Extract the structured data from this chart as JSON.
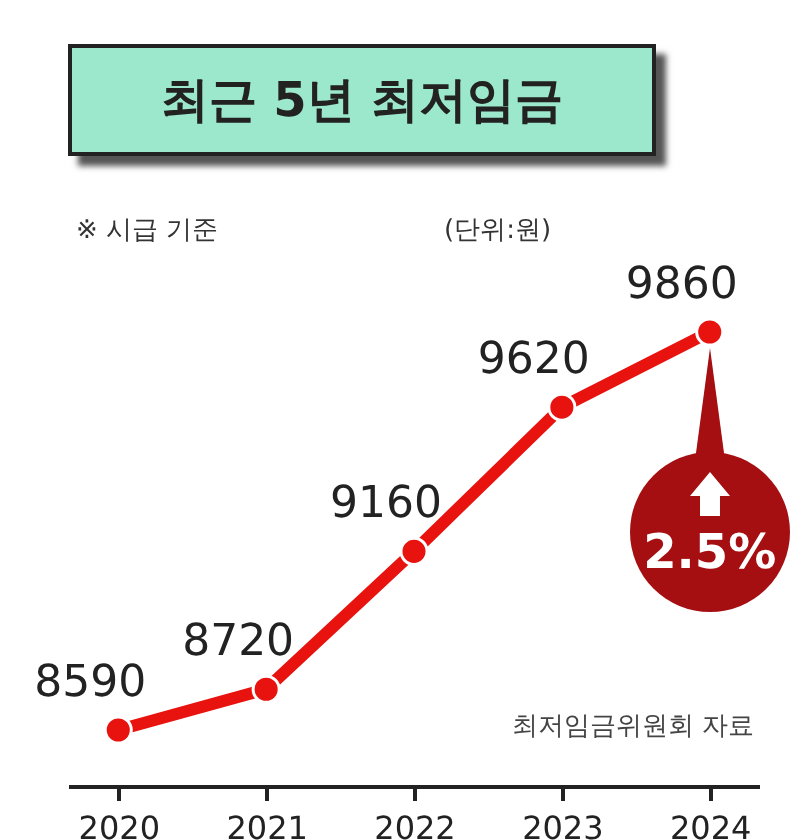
{
  "chart_data": {
    "type": "line",
    "title": "최근 5년 최저임금",
    "subtitle": "※ 시급 기준",
    "annotations": [
      "(단위:원)",
      "최저임금위원회 자료",
      {
        "text": "2.5%",
        "x": "2024",
        "y": 9860
      }
    ],
    "categories": [
      "2020",
      "2021",
      "2022",
      "2023",
      "2024"
    ],
    "series": [
      {
        "color": "#e8120f",
        "values": [
          8590,
          8720,
          9160,
          9620,
          9860
        ]
      }
    ],
    "data_labels": true,
    "marker": "circle",
    "line_style": "solid",
    "grid": false
  }
}
